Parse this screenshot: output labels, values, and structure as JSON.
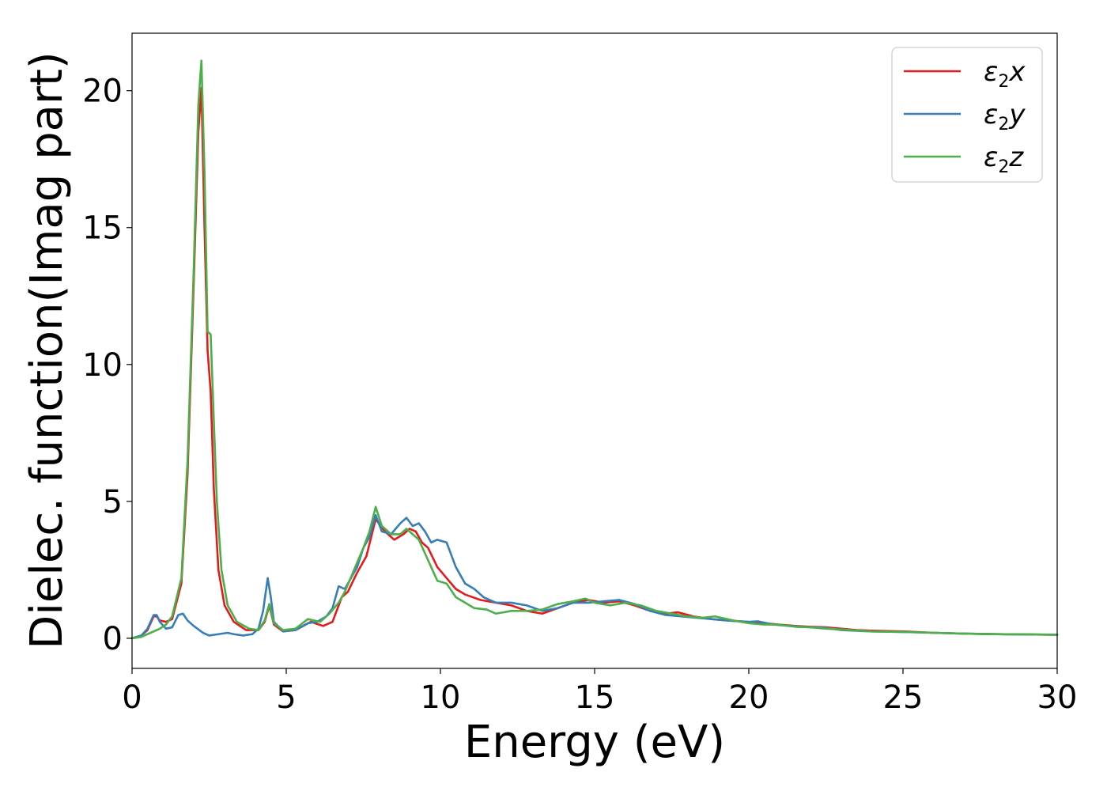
{
  "chart_data": {
    "type": "line",
    "xlabel": "Energy (eV)",
    "ylabel": "Dielec. function(Imag part)",
    "xlim": [
      0,
      30
    ],
    "ylim": [
      -1.1,
      22.1
    ],
    "xticks": [
      0,
      5,
      10,
      15,
      20,
      25,
      30
    ],
    "yticks": [
      0,
      5,
      10,
      15,
      20
    ],
    "grid": false,
    "legend_position": "top-right",
    "series": [
      {
        "name": "ε2x",
        "legend": {
          "base": "ε",
          "sub": "2",
          "axis": "x"
        },
        "color": "#e41a1c",
        "points": [
          [
            0,
            0
          ],
          [
            0.3,
            0.1
          ],
          [
            0.5,
            0.3
          ],
          [
            0.7,
            0.8
          ],
          [
            0.8,
            0.8
          ],
          [
            0.9,
            0.65
          ],
          [
            1.1,
            0.6
          ],
          [
            1.3,
            0.7
          ],
          [
            1.6,
            2.0
          ],
          [
            1.8,
            6.0
          ],
          [
            2.0,
            13.0
          ],
          [
            2.15,
            18.5
          ],
          [
            2.25,
            20.1
          ],
          [
            2.35,
            15.0
          ],
          [
            2.45,
            10.5
          ],
          [
            2.55,
            9.0
          ],
          [
            2.65,
            5.5
          ],
          [
            2.8,
            2.5
          ],
          [
            3.0,
            1.2
          ],
          [
            3.3,
            0.6
          ],
          [
            3.7,
            0.3
          ],
          [
            4.1,
            0.3
          ],
          [
            4.3,
            0.6
          ],
          [
            4.45,
            1.2
          ],
          [
            4.6,
            0.5
          ],
          [
            4.9,
            0.25
          ],
          [
            5.3,
            0.3
          ],
          [
            5.8,
            0.6
          ],
          [
            6.2,
            0.45
          ],
          [
            6.5,
            0.6
          ],
          [
            6.8,
            1.5
          ],
          [
            7.0,
            1.7
          ],
          [
            7.3,
            2.4
          ],
          [
            7.6,
            3.0
          ],
          [
            7.9,
            4.35
          ],
          [
            8.2,
            3.9
          ],
          [
            8.5,
            3.6
          ],
          [
            8.8,
            3.8
          ],
          [
            9.0,
            4.0
          ],
          [
            9.2,
            3.9
          ],
          [
            9.4,
            3.5
          ],
          [
            9.6,
            3.3
          ],
          [
            9.9,
            2.6
          ],
          [
            10.2,
            2.2
          ],
          [
            10.5,
            1.8
          ],
          [
            10.8,
            1.6
          ],
          [
            11.3,
            1.4
          ],
          [
            11.8,
            1.3
          ],
          [
            12.3,
            1.2
          ],
          [
            12.8,
            1.0
          ],
          [
            13.3,
            0.9
          ],
          [
            13.8,
            1.1
          ],
          [
            14.3,
            1.3
          ],
          [
            14.8,
            1.4
          ],
          [
            15.3,
            1.3
          ],
          [
            15.8,
            1.35
          ],
          [
            16.3,
            1.2
          ],
          [
            16.8,
            1.0
          ],
          [
            17.3,
            0.9
          ],
          [
            17.7,
            0.95
          ],
          [
            18.2,
            0.8
          ],
          [
            18.8,
            0.7
          ],
          [
            19.3,
            0.65
          ],
          [
            20,
            0.6
          ],
          [
            20.5,
            0.55
          ],
          [
            21,
            0.5
          ],
          [
            21.5,
            0.45
          ],
          [
            22,
            0.42
          ],
          [
            22.5,
            0.4
          ],
          [
            23,
            0.35
          ],
          [
            23.5,
            0.3
          ],
          [
            24,
            0.28
          ],
          [
            25,
            0.25
          ],
          [
            26,
            0.2
          ],
          [
            27,
            0.17
          ],
          [
            28,
            0.15
          ],
          [
            29,
            0.14
          ],
          [
            30,
            0.13
          ]
        ]
      },
      {
        "name": "ε2y",
        "legend": {
          "base": "ε",
          "sub": "2",
          "axis": "y"
        },
        "color": "#377eb8",
        "points": [
          [
            0,
            0
          ],
          [
            0.3,
            0.1
          ],
          [
            0.5,
            0.35
          ],
          [
            0.7,
            0.85
          ],
          [
            0.8,
            0.85
          ],
          [
            0.9,
            0.6
          ],
          [
            1.1,
            0.35
          ],
          [
            1.3,
            0.4
          ],
          [
            1.5,
            0.85
          ],
          [
            1.65,
            0.9
          ],
          [
            1.8,
            0.65
          ],
          [
            2.0,
            0.45
          ],
          [
            2.3,
            0.2
          ],
          [
            2.5,
            0.1
          ],
          [
            2.8,
            0.15
          ],
          [
            3.1,
            0.2
          ],
          [
            3.3,
            0.15
          ],
          [
            3.6,
            0.1
          ],
          [
            3.9,
            0.15
          ],
          [
            4.1,
            0.35
          ],
          [
            4.25,
            1.0
          ],
          [
            4.4,
            2.2
          ],
          [
            4.5,
            1.5
          ],
          [
            4.6,
            0.6
          ],
          [
            4.9,
            0.25
          ],
          [
            5.3,
            0.3
          ],
          [
            5.7,
            0.55
          ],
          [
            6.0,
            0.6
          ],
          [
            6.3,
            0.8
          ],
          [
            6.5,
            1.1
          ],
          [
            6.7,
            1.9
          ],
          [
            6.9,
            1.8
          ],
          [
            7.1,
            2.2
          ],
          [
            7.3,
            2.6
          ],
          [
            7.5,
            3.3
          ],
          [
            7.7,
            3.7
          ],
          [
            7.9,
            4.5
          ],
          [
            8.1,
            3.9
          ],
          [
            8.4,
            3.8
          ],
          [
            8.7,
            4.2
          ],
          [
            8.9,
            4.4
          ],
          [
            9.1,
            4.1
          ],
          [
            9.3,
            4.2
          ],
          [
            9.5,
            3.9
          ],
          [
            9.7,
            3.5
          ],
          [
            9.9,
            3.6
          ],
          [
            10.2,
            3.5
          ],
          [
            10.5,
            2.6
          ],
          [
            10.8,
            2.0
          ],
          [
            11.1,
            1.8
          ],
          [
            11.4,
            1.5
          ],
          [
            11.8,
            1.3
          ],
          [
            12.3,
            1.3
          ],
          [
            12.8,
            1.2
          ],
          [
            13.3,
            1.0
          ],
          [
            13.8,
            1.1
          ],
          [
            14.3,
            1.3
          ],
          [
            14.8,
            1.3
          ],
          [
            15.3,
            1.35
          ],
          [
            15.8,
            1.4
          ],
          [
            16.3,
            1.25
          ],
          [
            16.8,
            1.0
          ],
          [
            17.3,
            0.85
          ],
          [
            17.8,
            0.8
          ],
          [
            18.3,
            0.75
          ],
          [
            18.8,
            0.7
          ],
          [
            19.3,
            0.65
          ],
          [
            20,
            0.6
          ],
          [
            20.3,
            0.62
          ],
          [
            20.8,
            0.5
          ],
          [
            21.3,
            0.45
          ],
          [
            22,
            0.4
          ],
          [
            22.5,
            0.38
          ],
          [
            23,
            0.3
          ],
          [
            24,
            0.25
          ],
          [
            25,
            0.23
          ],
          [
            26,
            0.2
          ],
          [
            27,
            0.17
          ],
          [
            28,
            0.15
          ],
          [
            29,
            0.14
          ],
          [
            30,
            0.13
          ]
        ]
      },
      {
        "name": "ε2z",
        "legend": {
          "base": "ε",
          "sub": "2",
          "axis": "z"
        },
        "color": "#4daf4a",
        "points": [
          [
            0,
            0
          ],
          [
            0.3,
            0.05
          ],
          [
            0.6,
            0.2
          ],
          [
            0.9,
            0.35
          ],
          [
            1.1,
            0.5
          ],
          [
            1.3,
            0.8
          ],
          [
            1.6,
            2.2
          ],
          [
            1.8,
            6.5
          ],
          [
            2.0,
            13.5
          ],
          [
            2.15,
            19.5
          ],
          [
            2.25,
            21.1
          ],
          [
            2.35,
            17.0
          ],
          [
            2.45,
            11.2
          ],
          [
            2.55,
            11.1
          ],
          [
            2.65,
            8.0
          ],
          [
            2.75,
            5.0
          ],
          [
            2.9,
            2.5
          ],
          [
            3.1,
            1.2
          ],
          [
            3.4,
            0.6
          ],
          [
            3.8,
            0.35
          ],
          [
            4.1,
            0.3
          ],
          [
            4.3,
            0.65
          ],
          [
            4.45,
            1.25
          ],
          [
            4.6,
            0.55
          ],
          [
            4.9,
            0.3
          ],
          [
            5.3,
            0.35
          ],
          [
            5.7,
            0.7
          ],
          [
            6.1,
            0.6
          ],
          [
            6.4,
            0.9
          ],
          [
            6.7,
            1.3
          ],
          [
            6.9,
            1.7
          ],
          [
            7.2,
            2.5
          ],
          [
            7.5,
            3.3
          ],
          [
            7.7,
            3.9
          ],
          [
            7.9,
            4.8
          ],
          [
            8.1,
            4.1
          ],
          [
            8.4,
            3.8
          ],
          [
            8.7,
            3.8
          ],
          [
            8.9,
            4.0
          ],
          [
            9.1,
            3.8
          ],
          [
            9.3,
            3.6
          ],
          [
            9.5,
            3.1
          ],
          [
            9.7,
            2.6
          ],
          [
            9.9,
            2.1
          ],
          [
            10.2,
            2.0
          ],
          [
            10.5,
            1.5
          ],
          [
            10.8,
            1.3
          ],
          [
            11.1,
            1.1
          ],
          [
            11.5,
            1.05
          ],
          [
            11.8,
            0.9
          ],
          [
            12.3,
            1.0
          ],
          [
            12.8,
            1.0
          ],
          [
            13.3,
            1.05
          ],
          [
            13.8,
            1.25
          ],
          [
            14.3,
            1.35
          ],
          [
            14.7,
            1.45
          ],
          [
            15.0,
            1.3
          ],
          [
            15.5,
            1.2
          ],
          [
            16.0,
            1.3
          ],
          [
            16.5,
            1.2
          ],
          [
            17.0,
            1.0
          ],
          [
            17.5,
            0.9
          ],
          [
            18.0,
            0.8
          ],
          [
            18.5,
            0.75
          ],
          [
            18.9,
            0.8
          ],
          [
            19.5,
            0.65
          ],
          [
            20,
            0.55
          ],
          [
            20.5,
            0.5
          ],
          [
            21,
            0.5
          ],
          [
            21.5,
            0.42
          ],
          [
            22,
            0.4
          ],
          [
            22.5,
            0.35
          ],
          [
            23,
            0.32
          ],
          [
            24,
            0.25
          ],
          [
            25,
            0.23
          ],
          [
            26,
            0.2
          ],
          [
            27,
            0.17
          ],
          [
            28,
            0.15
          ],
          [
            29,
            0.14
          ],
          [
            30,
            0.13
          ]
        ]
      }
    ]
  }
}
